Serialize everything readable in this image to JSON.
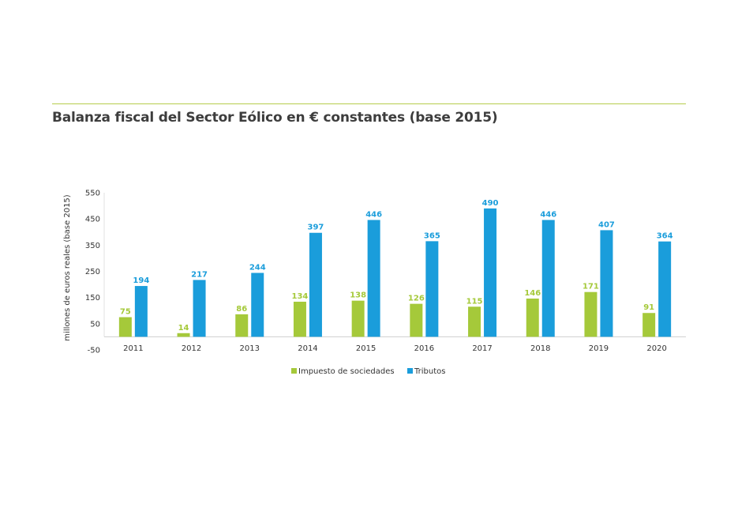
{
  "title": "Balanza fiscal del Sector Eólico en € constantes (base 2015)",
  "chart_data": {
    "type": "bar",
    "title": "Balanza fiscal del Sector Eólico en € constantes (base 2015)",
    "xlabel": "",
    "ylabel": "millones de euros reales (base 2015)",
    "ylim": [
      -50,
      550
    ],
    "yticks": [
      550,
      450,
      350,
      250,
      150,
      50,
      -50
    ],
    "ytick_labels": [
      "550",
      "450",
      "350",
      "250",
      "150",
      "50",
      "-50"
    ],
    "categories": [
      "2011",
      "2012",
      "2013",
      "2014",
      "2015",
      "2016",
      "2017",
      "2018",
      "2019",
      "2020"
    ],
    "series": [
      {
        "name": "Impuesto de sociedades",
        "color": "#a5c93a",
        "values": [
          75,
          14,
          86,
          134,
          138,
          126,
          115,
          146,
          171,
          91
        ],
        "labels": [
          "75",
          "14",
          "86",
          "134",
          "138",
          "126",
          "115",
          "146",
          "171",
          "91"
        ]
      },
      {
        "name": "Tributos",
        "color": "#1a9ddb",
        "values": [
          194,
          217,
          244,
          397,
          446,
          365,
          490,
          446,
          407,
          364
        ],
        "labels": [
          "194",
          "217",
          "244",
          "397",
          "446",
          "365",
          "490",
          "446",
          "407",
          "364"
        ]
      }
    ],
    "legend_position": "bottom-center",
    "grid": false
  }
}
